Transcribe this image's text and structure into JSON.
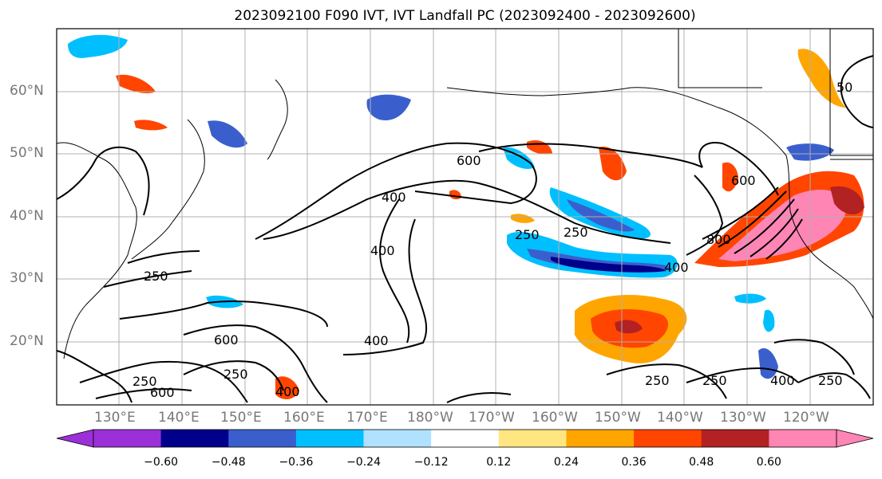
{
  "title": "2023092100 F090 IVT, IVT Landfall PC (2023092400 - 2023092600)",
  "lat_labels": [
    "60°N",
    "50°N",
    "40°N",
    "30°N",
    "20°N"
  ],
  "lon_labels": [
    "130°E",
    "140°E",
    "150°E",
    "160°E",
    "170°E",
    "180°W",
    "170°W",
    "160°W",
    "150°W",
    "140°W",
    "130°W",
    "120°W"
  ],
  "contour_labels": [
    "600",
    "400",
    "250",
    "250",
    "800",
    "600",
    "400",
    "400",
    "250",
    "600",
    "250",
    "600",
    "400",
    "250",
    "250",
    "400",
    "250",
    "400",
    "250",
    "50"
  ],
  "colorbar": {
    "tick_labels": [
      "−0.60",
      "−0.48",
      "−0.36",
      "−0.24",
      "−0.12",
      "0.12",
      "0.24",
      "0.36",
      "0.48",
      "0.60"
    ],
    "colors": [
      "#9b30d8",
      "#00008b",
      "#3a5fcd",
      "#00bfff",
      "#b0e2ff",
      "#ffffff",
      "#ffe680",
      "#ffa500",
      "#ff4500",
      "#b22222",
      "#ff85b5",
      "#ff85b5"
    ]
  }
}
